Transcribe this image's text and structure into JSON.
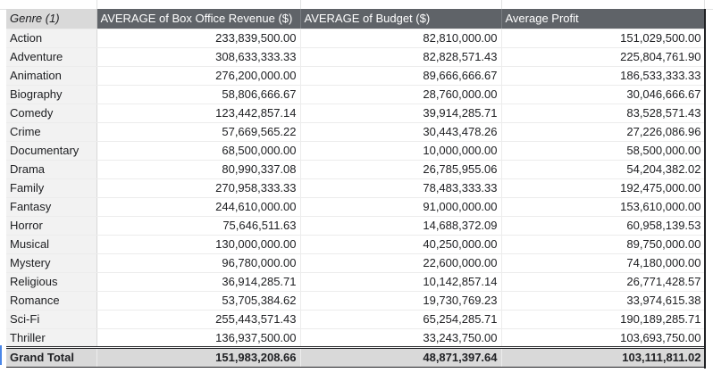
{
  "headers": {
    "genre": "Genre (1)",
    "revenue": "AVERAGE of Box Office Revenue ($)",
    "budget": "AVERAGE of Budget ($)",
    "profit": "Average Profit"
  },
  "rows": [
    {
      "genre": "Action",
      "revenue": "233,839,500.00",
      "budget": "82,810,000.00",
      "profit": "151,029,500.00"
    },
    {
      "genre": "Adventure",
      "revenue": "308,633,333.33",
      "budget": "82,828,571.43",
      "profit": "225,804,761.90"
    },
    {
      "genre": "Animation",
      "revenue": "276,200,000.00",
      "budget": "89,666,666.67",
      "profit": "186,533,333.33"
    },
    {
      "genre": "Biography",
      "revenue": "58,806,666.67",
      "budget": "28,760,000.00",
      "profit": "30,046,666.67"
    },
    {
      "genre": "Comedy",
      "revenue": "123,442,857.14",
      "budget": "39,914,285.71",
      "profit": "83,528,571.43"
    },
    {
      "genre": "Crime",
      "revenue": "57,669,565.22",
      "budget": "30,443,478.26",
      "profit": "27,226,086.96"
    },
    {
      "genre": "Documentary",
      "revenue": "68,500,000.00",
      "budget": "10,000,000.00",
      "profit": "58,500,000.00"
    },
    {
      "genre": "Drama",
      "revenue": "80,990,337.08",
      "budget": "26,785,955.06",
      "profit": "54,204,382.02"
    },
    {
      "genre": "Family",
      "revenue": "270,958,333.33",
      "budget": "78,483,333.33",
      "profit": "192,475,000.00"
    },
    {
      "genre": "Fantasy",
      "revenue": "244,610,000.00",
      "budget": "91,000,000.00",
      "profit": "153,610,000.00"
    },
    {
      "genre": "Horror",
      "revenue": "75,646,511.63",
      "budget": "14,688,372.09",
      "profit": "60,958,139.53"
    },
    {
      "genre": "Musical",
      "revenue": "130,000,000.00",
      "budget": "40,250,000.00",
      "profit": "89,750,000.00"
    },
    {
      "genre": "Mystery",
      "revenue": "96,780,000.00",
      "budget": "22,600,000.00",
      "profit": "74,180,000.00"
    },
    {
      "genre": "Religious",
      "revenue": "36,914,285.71",
      "budget": "10,142,857.14",
      "profit": "26,771,428.57"
    },
    {
      "genre": "Romance",
      "revenue": "53,705,384.62",
      "budget": "19,730,769.23",
      "profit": "33,974,615.38"
    },
    {
      "genre": "Sci-Fi",
      "revenue": "255,443,571.43",
      "budget": "65,254,285.71",
      "profit": "190,189,285.71"
    },
    {
      "genre": "Thriller",
      "revenue": "136,937,500.00",
      "budget": "33,243,750.00",
      "profit": "103,693,750.00"
    }
  ],
  "total": {
    "label": "Grand Total",
    "revenue": "151,983,208.66",
    "budget": "48,871,397.64",
    "profit": "103,111,811.02"
  },
  "colors": {
    "header_bg": "#5f6368",
    "genre_header_bg": "#d9d9d9",
    "genre_col_bg": "#f2f2f2",
    "total_bg": "#d9d9d9",
    "selection_marker": "#4a86e8"
  }
}
